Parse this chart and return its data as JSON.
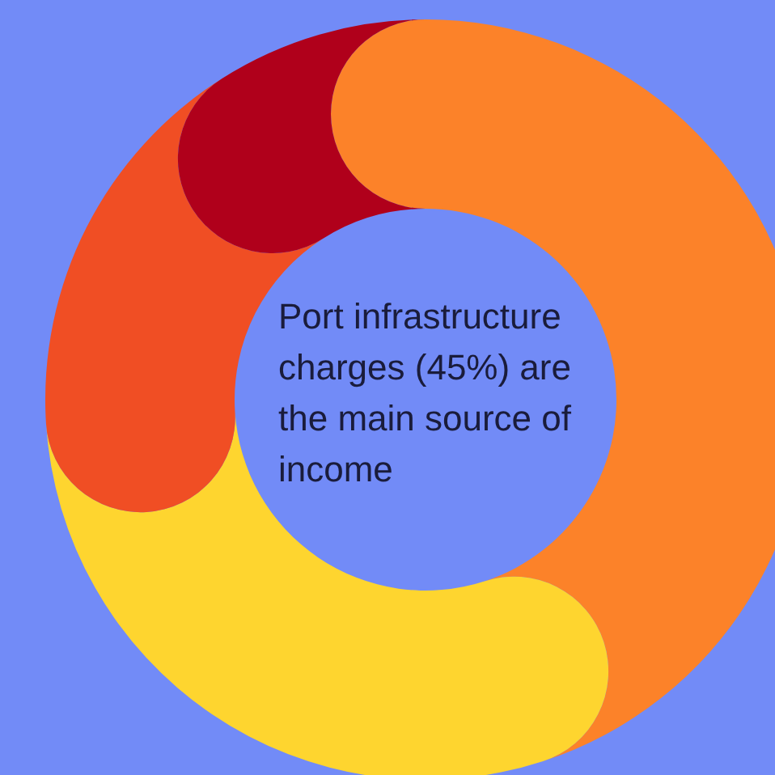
{
  "chart_data": {
    "type": "donut",
    "title": "Port infrastructure charges (45%) are the main source of income",
    "categories": [
      null,
      null,
      null,
      null
    ],
    "values": [
      45,
      29,
      17,
      9
    ],
    "colors": [
      "#fc8229",
      "#fed52f",
      "#f04e24",
      "#b0001b"
    ]
  }
}
